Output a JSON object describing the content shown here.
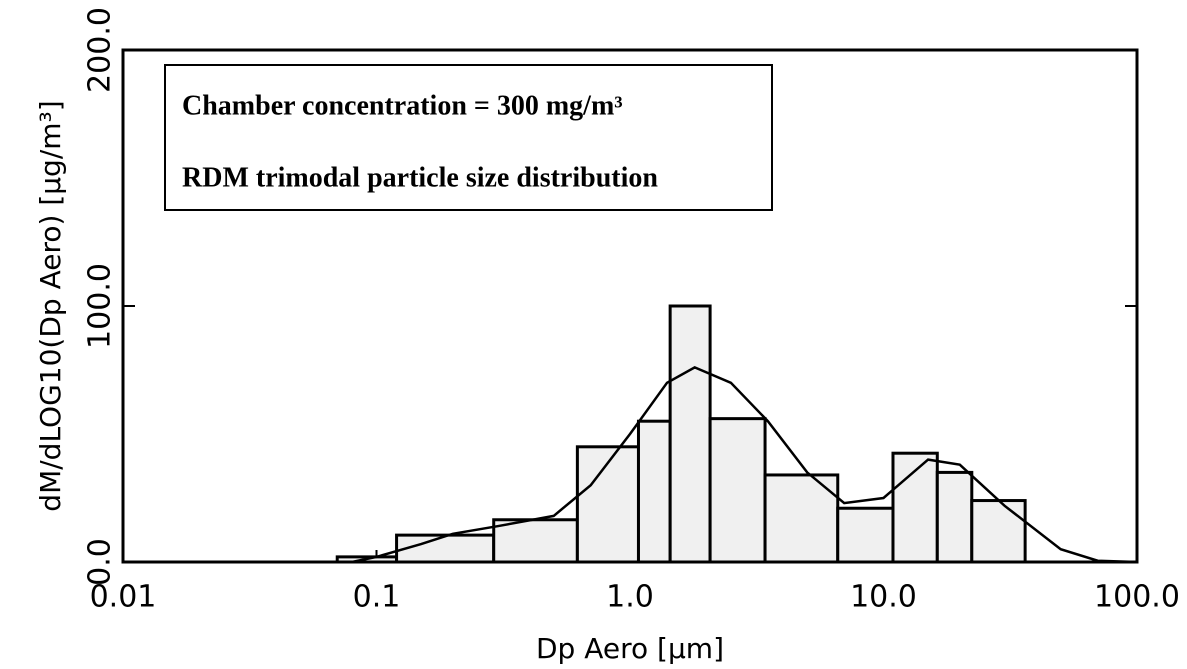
{
  "chart_data": {
    "type": "histogram",
    "annotations": [
      "Chamber concentration = 300 mg/m³",
      "RDM trimodal particle size distribution"
    ],
    "xlabel": "Dp Aero [µm]",
    "ylabel": "dM/dLOG10(Dp Aero) [µg/m³]",
    "xscale": "log",
    "xlim": [
      0.01,
      100
    ],
    "xticks": [
      0.01,
      0.1,
      {
        "value": 1,
        "label": "1.0"
      },
      {
        "value": 10,
        "label": "10.0"
      },
      {
        "value": 100,
        "label": "100.0"
      }
    ],
    "ylim": [
      0,
      200
    ],
    "yticks": [
      {
        "value": 0,
        "label": "0.0"
      },
      {
        "value": 100,
        "label": "100.0"
      },
      {
        "value": 200,
        "label": "200.0"
      }
    ],
    "bins": [
      0.07,
      0.12,
      0.29,
      0.62,
      1.08,
      1.44,
      2.07,
      3.41,
      6.6,
      10.9,
      16.3,
      22.3,
      36.2
    ],
    "values": [
      2,
      10.5,
      16.5,
      45,
      55,
      100,
      56,
      34,
      21,
      42.5,
      35,
      24
    ],
    "color": "#f0f0f0",
    "curve": {
      "x": [
        0.08,
        0.1,
        0.15,
        0.2,
        0.3,
        0.5,
        0.7,
        1.0,
        1.4,
        1.8,
        2.5,
        3.5,
        5,
        7,
        10,
        15,
        20,
        30,
        50,
        70,
        100
      ],
      "y": [
        0,
        2,
        7,
        11,
        14,
        18,
        30,
        50,
        70,
        76,
        70,
        55,
        35,
        23,
        25,
        40,
        38,
        22,
        5,
        0.5,
        0
      ]
    },
    "grid": false
  }
}
